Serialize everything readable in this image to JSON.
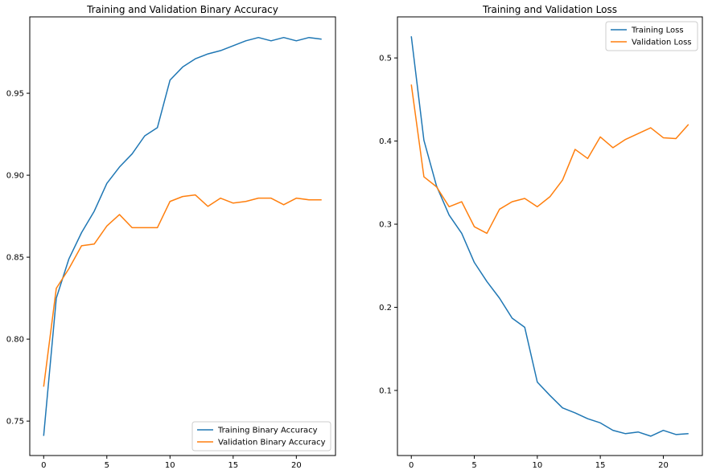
{
  "colors": {
    "training": "#1f77b4",
    "validation": "#ff7f0e"
  },
  "chart_data": [
    {
      "type": "line",
      "title": "Training and Validation Binary Accuracy",
      "xlabel": "",
      "ylabel": "",
      "xlim": [
        -1.1,
        23.1
      ],
      "ylim": [
        0.729,
        0.9966
      ],
      "xticks": [
        0,
        5,
        10,
        15,
        20
      ],
      "yticks": [
        0.75,
        0.8,
        0.85,
        0.9,
        0.95
      ],
      "ytick_labels": [
        "0.75",
        "0.80",
        "0.85",
        "0.90",
        "0.95"
      ],
      "legend_position": "lower-right",
      "grid": false,
      "x": [
        0,
        1,
        2,
        3,
        4,
        5,
        6,
        7,
        8,
        9,
        10,
        11,
        12,
        13,
        14,
        15,
        16,
        17,
        18,
        19,
        20,
        21,
        22
      ],
      "series": [
        {
          "name": "Training Binary Accuracy",
          "color_key": "training",
          "values": [
            0.741,
            0.825,
            0.849,
            0.865,
            0.878,
            0.895,
            0.905,
            0.913,
            0.924,
            0.929,
            0.958,
            0.966,
            0.971,
            0.974,
            0.976,
            0.979,
            0.982,
            0.984,
            0.982,
            0.984,
            0.982,
            0.984,
            0.983
          ]
        },
        {
          "name": "Validation Binary Accuracy",
          "color_key": "validation",
          "values": [
            0.771,
            0.831,
            0.843,
            0.857,
            0.858,
            0.869,
            0.876,
            0.868,
            0.868,
            0.868,
            0.884,
            0.887,
            0.888,
            0.881,
            0.886,
            0.883,
            0.884,
            0.886,
            0.886,
            0.882,
            0.886,
            0.885,
            0.885
          ]
        }
      ]
    },
    {
      "type": "line",
      "title": "Training and Validation Loss",
      "xlabel": "",
      "ylabel": "",
      "xlim": [
        -1.1,
        23.1
      ],
      "ylim": [
        0.0217,
        0.5494
      ],
      "xticks": [
        0,
        5,
        10,
        15,
        20
      ],
      "yticks": [
        0.1,
        0.2,
        0.3,
        0.4,
        0.5
      ],
      "ytick_labels": [
        "0.1",
        "0.2",
        "0.3",
        "0.4",
        "0.5"
      ],
      "legend_position": "upper-right",
      "grid": false,
      "x": [
        0,
        1,
        2,
        3,
        4,
        5,
        6,
        7,
        8,
        9,
        10,
        11,
        12,
        13,
        14,
        15,
        16,
        17,
        18,
        19,
        20,
        21,
        22
      ],
      "series": [
        {
          "name": "Training Loss",
          "color_key": "training",
          "values": [
            0.526,
            0.401,
            0.346,
            0.311,
            0.289,
            0.254,
            0.231,
            0.211,
            0.187,
            0.176,
            0.11,
            0.094,
            0.079,
            0.073,
            0.066,
            0.061,
            0.052,
            0.048,
            0.05,
            0.045,
            0.052,
            0.047,
            0.048
          ]
        },
        {
          "name": "Validation Loss",
          "color_key": "validation",
          "values": [
            0.468,
            0.357,
            0.345,
            0.321,
            0.327,
            0.297,
            0.289,
            0.318,
            0.327,
            0.331,
            0.321,
            0.333,
            0.353,
            0.39,
            0.379,
            0.405,
            0.392,
            0.402,
            0.409,
            0.416,
            0.404,
            0.403,
            0.42
          ]
        }
      ]
    }
  ]
}
